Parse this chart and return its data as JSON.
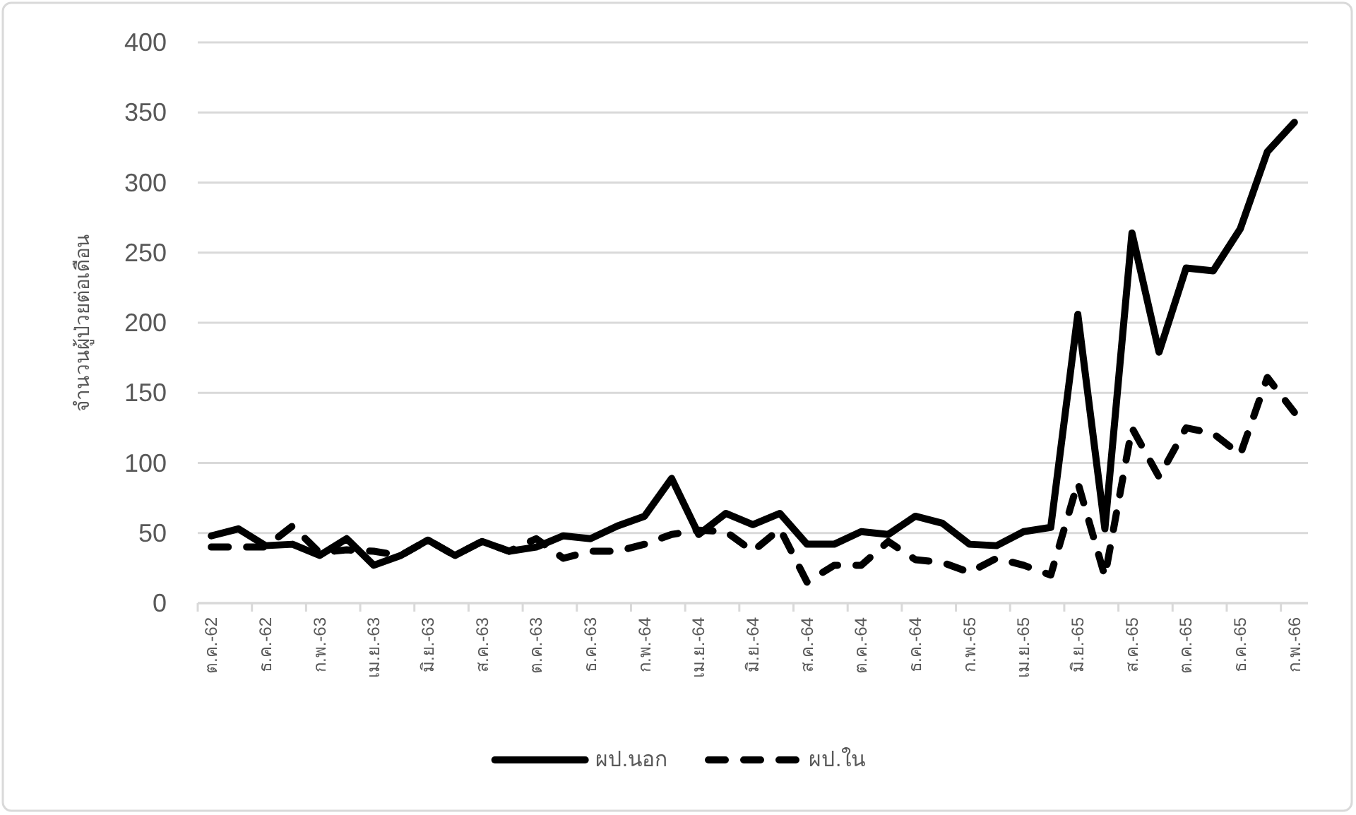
{
  "chart_data": {
    "type": "line",
    "ylabel": "จำนวนผู้ป่วยต่อเดือน",
    "categories": [
      "ต.ค.-62",
      null,
      "ธ.ค.-62",
      null,
      "ก.พ.-63",
      null,
      "เม.ย.-63",
      null,
      "มิ.ย.-63",
      null,
      "ส.ค.-63",
      null,
      "ต.ค.-63",
      null,
      "ธ.ค.-63",
      null,
      "ก.พ.-64",
      null,
      "เม.ย.-64",
      null,
      "มิ.ย.-64",
      null,
      "ส.ค.-64",
      null,
      "ต.ค.-64",
      null,
      "ธ.ค.-64",
      null,
      "ก.พ.-65",
      null,
      "เม.ย.-65",
      null,
      "มิ.ย.-65",
      null,
      "ส.ค.-65",
      null,
      "ต.ค.-65",
      null,
      "ธ.ค.-65",
      null,
      "ก.พ.-66"
    ],
    "series": [
      {
        "name": "ผป.นอก",
        "color": "#000000",
        "line_style": "solid",
        "values": [
          48,
          53,
          41,
          42,
          34,
          46,
          27,
          34,
          45,
          34,
          44,
          37,
          40,
          48,
          46,
          55,
          62,
          89,
          49,
          64,
          56,
          64,
          42,
          42,
          51,
          49,
          62,
          57,
          42,
          41,
          51,
          54,
          206,
          53,
          264,
          179,
          239,
          237,
          267,
          322,
          343
        ]
      },
      {
        "name": "ผป.ใน",
        "color": "#000000",
        "line_style": "dashed",
        "values": [
          40,
          40,
          40,
          55,
          36,
          38,
          37,
          34,
          45,
          34,
          44,
          37,
          46,
          32,
          37,
          37,
          42,
          49,
          52,
          51,
          37,
          53,
          15,
          27,
          27,
          44,
          31,
          29,
          22,
          32,
          27,
          20,
          86,
          19,
          125,
          90,
          125,
          121,
          106,
          161,
          136
        ]
      }
    ],
    "ylim": [
      0,
      400
    ],
    "yticks": [
      0,
      50,
      100,
      150,
      200,
      250,
      300,
      350,
      400
    ],
    "grid": "y",
    "legend": "bottom"
  }
}
